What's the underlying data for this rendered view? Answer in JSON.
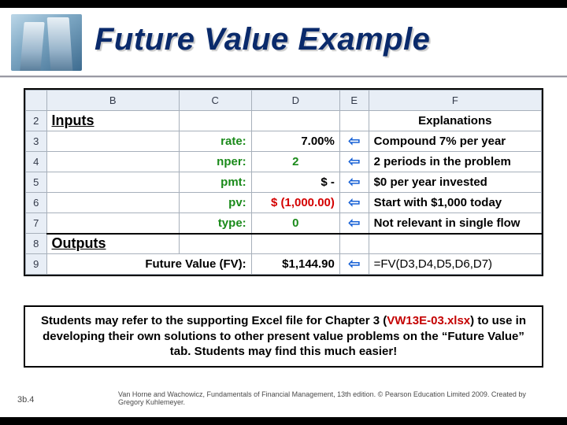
{
  "title": "Future Value Example",
  "slide_number": "3b.4",
  "credit": "Van Horne and Wachowicz, Fundamentals of Financial Management, 13th edition. © Pearson Education Limited 2009. Created by Gregory Kuhlemeyer.",
  "note": {
    "pre": "Students may refer to the supporting Excel file for Chapter 3 (",
    "file": "VW13E-03.xlsx",
    "post": ") to use in developing their own solutions to other present value problems on the “Future Value” tab. Students may find this much easier!"
  },
  "sheet": {
    "columns": [
      "",
      "B",
      "C",
      "D",
      "E",
      "F"
    ],
    "col_classes": [
      "rowhdr",
      "col-B",
      "col-C",
      "col-D",
      "col-E",
      "col-F"
    ],
    "arrow_glyph": "⇦",
    "rows": [
      {
        "n": "2",
        "B": "Inputs",
        "B_cls": "big-label",
        "C": "",
        "D": "",
        "E": "",
        "F": "Explanations",
        "F_cls": "center bold",
        "thick": false
      },
      {
        "n": "3",
        "B": "",
        "C": "rate:",
        "C_cls": "right bold green",
        "D": "7.00%",
        "D_cls": "right bold",
        "E": "arrow",
        "F": "Compound 7% per year",
        "F_cls": "bold",
        "thick": false
      },
      {
        "n": "4",
        "B": "",
        "C": "nper:",
        "C_cls": "right bold green",
        "D": "2",
        "D_cls": "center bold green",
        "E": "arrow",
        "F": "2 periods in the problem",
        "F_cls": "bold",
        "thick": false
      },
      {
        "n": "5",
        "B": "",
        "C": "pmt:",
        "C_cls": "right bold green",
        "D": "$                  -",
        "D_cls": "right bold",
        "E": "arrow",
        "F": "$0 per year invested",
        "F_cls": "bold",
        "thick": false
      },
      {
        "n": "6",
        "B": "",
        "C": "pv:",
        "C_cls": "right bold green",
        "D": "$   (1,000.00)",
        "D_cls": "right bold red",
        "E": "arrow",
        "F": "Start with $1,000 today",
        "F_cls": "bold",
        "thick": false
      },
      {
        "n": "7",
        "B": "",
        "C": "type:",
        "C_cls": "right bold green",
        "D": "0",
        "D_cls": "center bold green",
        "E": "arrow",
        "F": "Not relevant in single flow",
        "F_cls": "bold",
        "thick": true
      },
      {
        "n": "8",
        "B": "Outputs",
        "B_cls": "big-label",
        "C": "",
        "D": "",
        "E": "",
        "F": "",
        "thick": false
      },
      {
        "n": "9",
        "B": "",
        "C": "Future Value (FV):",
        "C_cls": "right bold",
        "C_span": true,
        "D": "$1,144.90",
        "D_cls": "right bold bgshade",
        "E": "arrow",
        "F": "=FV(D3,D4,D5,D6,D7)",
        "F_cls": "",
        "thick": false
      }
    ]
  },
  "colors": {
    "title": "#0a2a6b",
    "arrow": "#1a63d6",
    "green": "#1a8a1a",
    "red": "#d40000",
    "header_bg": "#e8eef6",
    "grid": "#a7b0bb"
  }
}
